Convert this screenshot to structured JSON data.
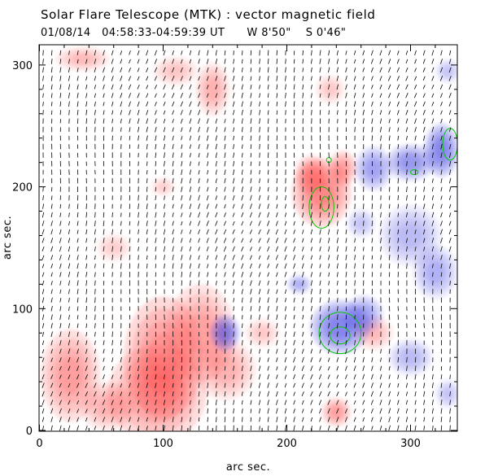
{
  "header": {
    "title": "Solar Flare Telescope (MTK) : vector magnetic field",
    "subtitle": "01/08/14   04:58:33-04:59:39 UT      W 8'50\"    S 0'46\""
  },
  "chart_data": {
    "type": "heatmap",
    "title": "Solar Flare Telescope (MTK) : vector magnetic field",
    "xlabel": "arc sec.",
    "ylabel": "arc sec.",
    "xlim": [
      0,
      335
    ],
    "ylim": [
      0,
      315
    ],
    "xticks": [
      0,
      100,
      200,
      300
    ],
    "yticks": [
      0,
      100,
      200,
      300
    ],
    "grid": false,
    "colors": {
      "positive": "#ff4040",
      "negative": "#2f2fe0",
      "contour": "#00c800",
      "vector": "#000000"
    },
    "positive_regions": [
      {
        "x": 228,
        "y": 195,
        "rx": 24,
        "ry": 28,
        "strength": 0.95
      },
      {
        "x": 220,
        "y": 210,
        "rx": 14,
        "ry": 16,
        "strength": 0.75
      },
      {
        "x": 245,
        "y": 215,
        "rx": 12,
        "ry": 15,
        "strength": 0.7
      },
      {
        "x": 100,
        "y": 60,
        "rx": 32,
        "ry": 50,
        "strength": 0.85
      },
      {
        "x": 95,
        "y": 30,
        "rx": 40,
        "ry": 40,
        "strength": 0.8
      },
      {
        "x": 130,
        "y": 80,
        "rx": 28,
        "ry": 40,
        "strength": 0.7
      },
      {
        "x": 25,
        "y": 45,
        "rx": 24,
        "ry": 38,
        "strength": 0.75
      },
      {
        "x": 55,
        "y": 20,
        "rx": 22,
        "ry": 20,
        "strength": 0.55
      },
      {
        "x": 150,
        "y": 50,
        "rx": 25,
        "ry": 25,
        "strength": 0.55
      },
      {
        "x": 140,
        "y": 280,
        "rx": 14,
        "ry": 22,
        "strength": 0.55
      },
      {
        "x": 110,
        "y": 295,
        "rx": 18,
        "ry": 12,
        "strength": 0.4
      },
      {
        "x": 35,
        "y": 305,
        "rx": 22,
        "ry": 10,
        "strength": 0.45
      },
      {
        "x": 240,
        "y": 15,
        "rx": 12,
        "ry": 12,
        "strength": 0.7
      },
      {
        "x": 270,
        "y": 80,
        "rx": 16,
        "ry": 14,
        "strength": 0.45
      },
      {
        "x": 180,
        "y": 80,
        "rx": 14,
        "ry": 12,
        "strength": 0.35
      },
      {
        "x": 100,
        "y": 200,
        "rx": 10,
        "ry": 8,
        "strength": 0.3
      },
      {
        "x": 60,
        "y": 150,
        "rx": 14,
        "ry": 12,
        "strength": 0.3
      },
      {
        "x": 235,
        "y": 280,
        "rx": 12,
        "ry": 12,
        "strength": 0.35
      }
    ],
    "negative_regions": [
      {
        "x": 243,
        "y": 85,
        "rx": 24,
        "ry": 22,
        "strength": 0.9
      },
      {
        "x": 262,
        "y": 95,
        "rx": 16,
        "ry": 16,
        "strength": 0.6
      },
      {
        "x": 150,
        "y": 80,
        "rx": 12,
        "ry": 15,
        "strength": 0.85
      },
      {
        "x": 325,
        "y": 230,
        "rx": 14,
        "ry": 22,
        "strength": 0.85
      },
      {
        "x": 300,
        "y": 220,
        "rx": 20,
        "ry": 15,
        "strength": 0.7
      },
      {
        "x": 270,
        "y": 215,
        "rx": 15,
        "ry": 18,
        "strength": 0.65
      },
      {
        "x": 300,
        "y": 160,
        "rx": 25,
        "ry": 25,
        "strength": 0.45
      },
      {
        "x": 320,
        "y": 130,
        "rx": 18,
        "ry": 22,
        "strength": 0.5
      },
      {
        "x": 300,
        "y": 60,
        "rx": 18,
        "ry": 15,
        "strength": 0.45
      },
      {
        "x": 210,
        "y": 120,
        "rx": 10,
        "ry": 8,
        "strength": 0.5
      },
      {
        "x": 330,
        "y": 30,
        "rx": 10,
        "ry": 12,
        "strength": 0.35
      },
      {
        "x": 260,
        "y": 170,
        "rx": 12,
        "ry": 12,
        "strength": 0.35
      },
      {
        "x": 330,
        "y": 295,
        "rx": 10,
        "ry": 10,
        "strength": 0.35
      }
    ],
    "contours": [
      {
        "x": 228,
        "y": 183,
        "rx": 10,
        "ry": 17
      },
      {
        "x": 231,
        "y": 186,
        "rx": 3,
        "ry": 6
      },
      {
        "x": 243,
        "y": 80,
        "rx": 17,
        "ry": 17
      },
      {
        "x": 243,
        "y": 78,
        "rx": 8,
        "ry": 7
      },
      {
        "x": 332,
        "y": 235,
        "rx": 6,
        "ry": 13
      },
      {
        "x": 303,
        "y": 212,
        "rx": 3,
        "ry": 2
      },
      {
        "x": 234,
        "y": 222,
        "rx": 2,
        "ry": 2
      }
    ],
    "vector_field": {
      "spacing": 7,
      "dominant_direction": "near-vertical, tilted slightly leftward at the top"
    }
  }
}
